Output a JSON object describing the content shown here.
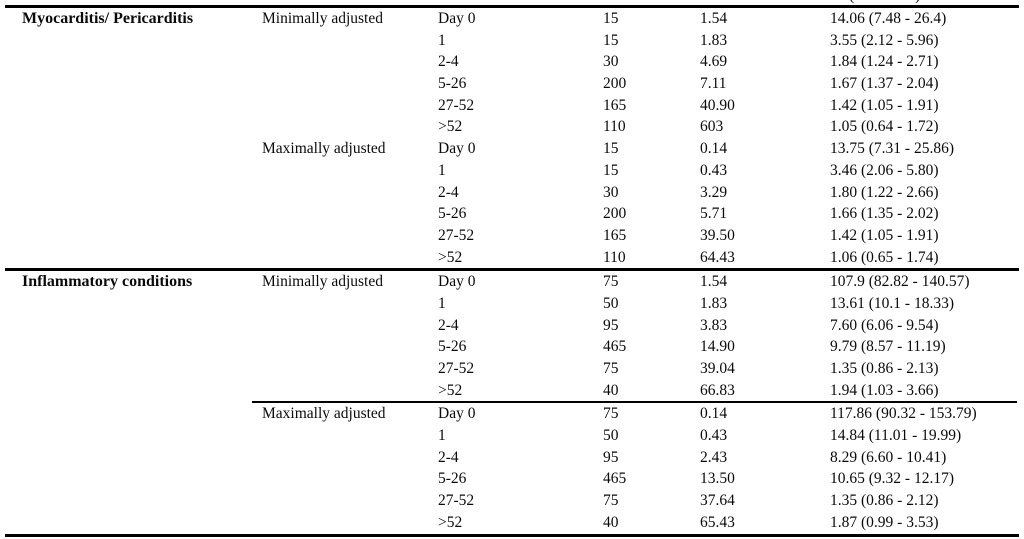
{
  "table": {
    "header_fragment": {
      "left": "(",
      "right": ")"
    },
    "groups": [
      {
        "condition": "Myocarditis/ Pericarditis",
        "subgroups": [
          {
            "adjustment": "Minimally adjusted",
            "rows": [
              {
                "day": "Day 0",
                "n": "15",
                "rate": "1.54",
                "rr": "14.06 (7.48 - 26.4)"
              },
              {
                "day": "1",
                "n": "15",
                "rate": "1.83",
                "rr": "3.55 (2.12 - 5.96)"
              },
              {
                "day": "2-4",
                "n": "30",
                "rate": "4.69",
                "rr": "1.84 (1.24 - 2.71)"
              },
              {
                "day": "5-26",
                "n": "200",
                "rate": "7.11",
                "rr": "1.67 (1.37 - 2.04)"
              },
              {
                "day": "27-52",
                "n": "165",
                "rate": "40.90",
                "rr": "1.42 (1.05 - 1.91)"
              },
              {
                "day": ">52",
                "n": "110",
                "rate": "603",
                "rr": "1.05 (0.64 - 1.72)"
              }
            ]
          },
          {
            "adjustment": "Maximally adjusted",
            "rows": [
              {
                "day": "Day 0",
                "n": "15",
                "rate": "0.14",
                "rr": "13.75 (7.31 - 25.86)"
              },
              {
                "day": "1",
                "n": "15",
                "rate": "0.43",
                "rr": "3.46 (2.06 - 5.80)"
              },
              {
                "day": "2-4",
                "n": "30",
                "rate": "3.29",
                "rr": "1.80 (1.22 - 2.66)"
              },
              {
                "day": "5-26",
                "n": "200",
                "rate": "5.71",
                "rr": "1.66 (1.35 - 2.02)"
              },
              {
                "day": "27-52",
                "n": "165",
                "rate": "39.50",
                "rr": "1.42 (1.05 - 1.91)"
              },
              {
                "day": ">52",
                "n": "110",
                "rate": "64.43",
                "rr": "1.06 (0.65 - 1.74)"
              }
            ]
          }
        ]
      },
      {
        "condition": "Inflammatory conditions",
        "subgroups": [
          {
            "adjustment": "Minimally adjusted",
            "rows": [
              {
                "day": "Day 0",
                "n": "75",
                "rate": "1.54",
                "rr": "107.9 (82.82 - 140.57)"
              },
              {
                "day": "1",
                "n": "50",
                "rate": "1.83",
                "rr": "13.61 (10.1 - 18.33)"
              },
              {
                "day": "2-4",
                "n": "95",
                "rate": "3.83",
                "rr": "7.60 (6.06 - 9.54)"
              },
              {
                "day": "5-26",
                "n": "465",
                "rate": "14.90",
                "rr": "9.79 (8.57 - 11.19)"
              },
              {
                "day": "27-52",
                "n": "75",
                "rate": "39.04",
                "rr": "1.35 (0.86 - 2.13)"
              },
              {
                "day": ">52",
                "n": "40",
                "rate": "66.83",
                "rr": "1.94 (1.03 - 3.66)"
              }
            ]
          },
          {
            "adjustment": "Maximally adjusted",
            "rows": [
              {
                "day": "Day 0",
                "n": "75",
                "rate": "0.14",
                "rr": "117.86 (90.32 - 153.79)"
              },
              {
                "day": "1",
                "n": "50",
                "rate": "0.43",
                "rr": "14.84 (11.01 - 19.99)"
              },
              {
                "day": "2-4",
                "n": "95",
                "rate": "2.43",
                "rr": "8.29 (6.60 - 10.41)"
              },
              {
                "day": "5-26",
                "n": "465",
                "rate": "13.50",
                "rr": "10.65 (9.32 - 12.17)"
              },
              {
                "day": "27-52",
                "n": "75",
                "rate": "37.64",
                "rr": "1.35 (0.86 - 2.12)"
              },
              {
                "day": ">52",
                "n": "40",
                "rate": "65.43",
                "rr": "1.87 (0.99 - 3.53)"
              }
            ]
          }
        ]
      }
    ]
  }
}
